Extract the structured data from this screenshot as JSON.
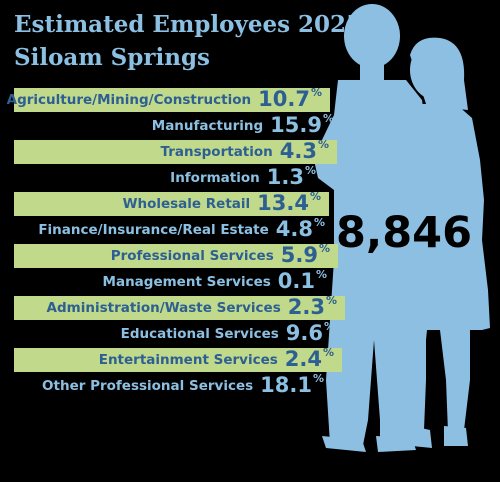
{
  "title": {
    "line1": "Estimated Employees 2025",
    "line2": "Siloam Springs"
  },
  "total_employees": "8,846",
  "colors": {
    "background": "#000000",
    "band": "#c0d98a",
    "band_text": "#2d5f93",
    "light_blue": "#8cc0e3",
    "silhouette": "#8dbfe3"
  },
  "silhouette_icon": "man-and-woman-silhouette-icon",
  "chart_data": {
    "type": "table",
    "title": "Estimated Employees 2025 Siloam Springs",
    "unit": "%",
    "categories": [
      "Agriculture/Mining/Construction",
      "Manufacturing",
      "Transportation",
      "Information",
      "Wholesale Retail",
      "Finance/Insurance/Real Estate",
      "Professional Services",
      "Management Services",
      "Administration/Waste Services",
      "Educational Services",
      "Entertainment Services",
      "Other Professional Services"
    ],
    "values": [
      10.7,
      15.9,
      4.3,
      1.3,
      13.4,
      4.8,
      5.9,
      0.1,
      2.3,
      9.6,
      2.4,
      18.1
    ],
    "value_labels": [
      "10.7",
      "15.9",
      "4.3",
      "1.3",
      "13.4",
      "4.8",
      "5.9",
      "0.1",
      "2.3",
      "9.6",
      "2.4",
      "18.1"
    ],
    "total": "8,846"
  }
}
